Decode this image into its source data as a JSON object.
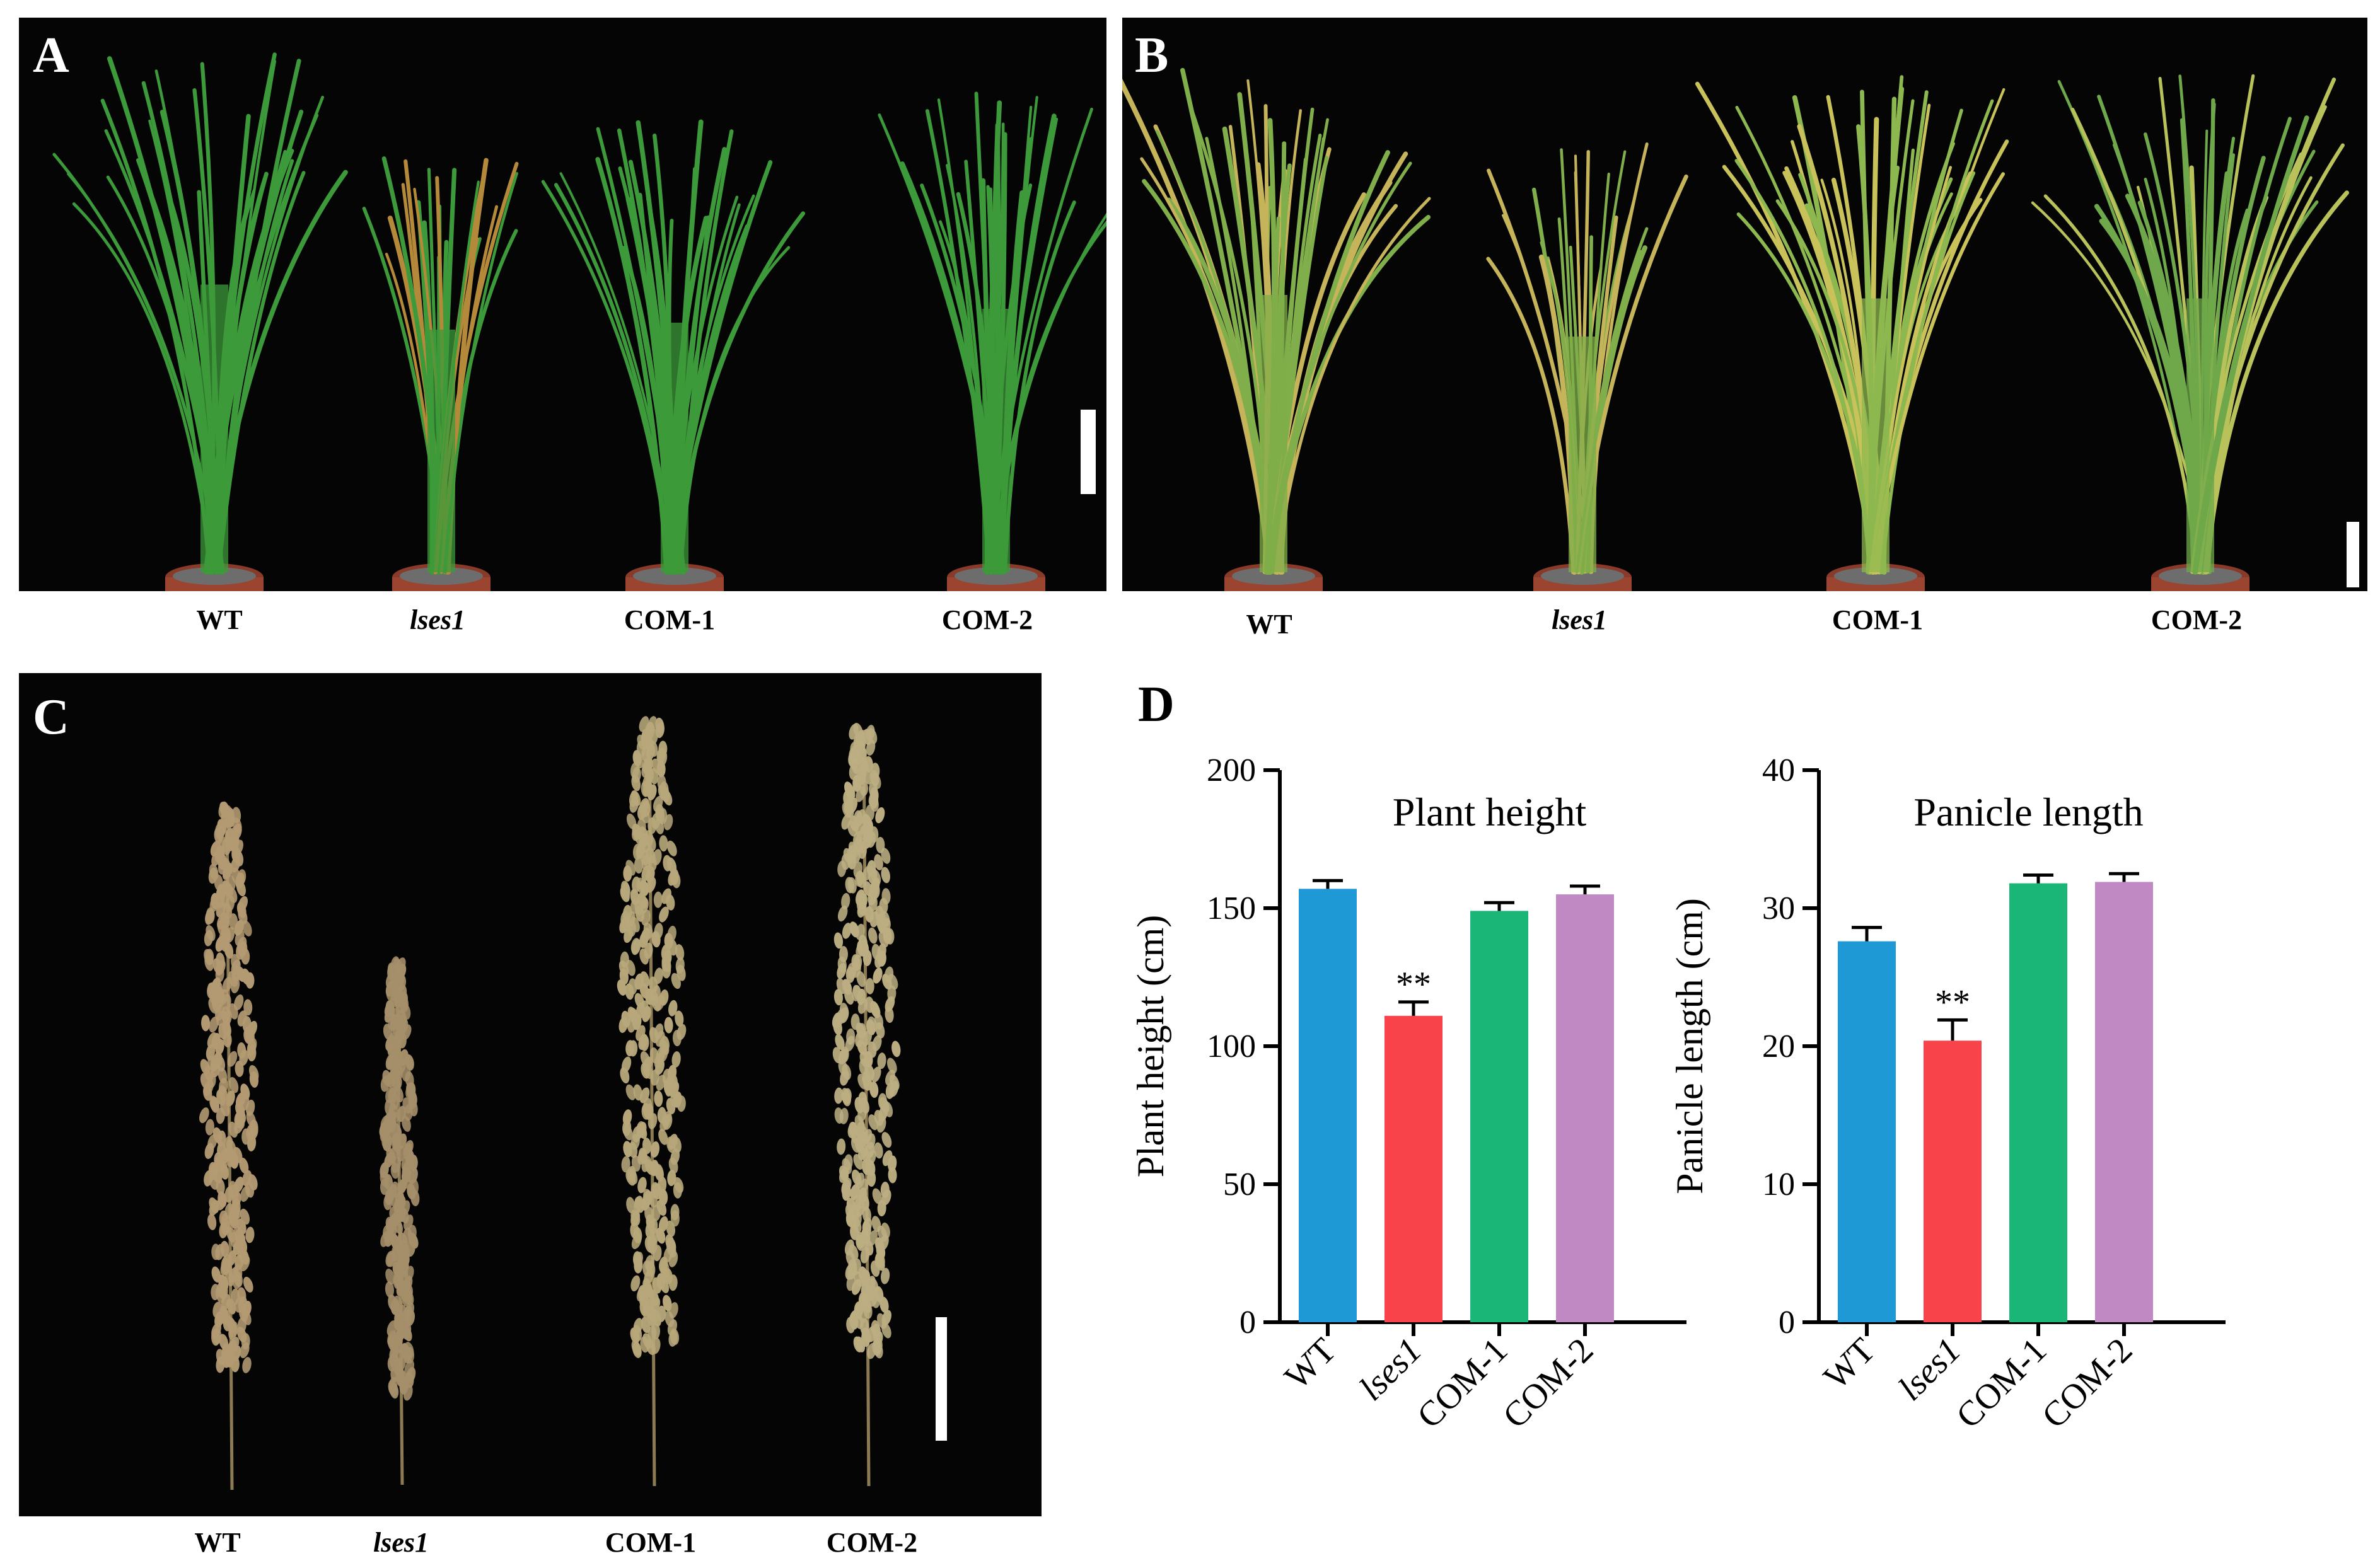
{
  "figure": {
    "panels": {
      "A": {
        "letter": "A",
        "labels": [
          "WT",
          "lses1",
          "COM-1",
          "COM-2"
        ]
      },
      "B": {
        "letter": "B",
        "labels": [
          "WT",
          "lses1",
          "COM-1",
          "COM-2"
        ]
      },
      "C": {
        "letter": "C",
        "labels": [
          "WT",
          "lses1",
          "COM-1",
          "COM-2"
        ]
      },
      "D": {
        "letter": "D"
      }
    }
  },
  "colors": {
    "WT": "#1f98d6",
    "lses1": "#f9434b",
    "COM-1": "#1ab677",
    "COM-2": "#c089c4",
    "plant_green": "#3c9a3a",
    "panicle_tan": "#b39a72"
  },
  "chart_data": [
    {
      "type": "bar",
      "title": "Plant height",
      "ylabel": "Plant height (cm)",
      "xlabel": "",
      "categories": [
        "WT",
        "lses1",
        "COM-1",
        "COM-2"
      ],
      "values": [
        157,
        111,
        149,
        155
      ],
      "errors": [
        3,
        5,
        3,
        3
      ],
      "significance": [
        "",
        "**",
        "",
        ""
      ],
      "ylim": [
        0,
        200
      ],
      "yticks": [
        "0",
        "50",
        "100",
        "150",
        "200"
      ],
      "grid": false
    },
    {
      "type": "bar",
      "title": "Panicle length",
      "ylabel": "Panicle length (cm)",
      "xlabel": "",
      "categories": [
        "WT",
        "lses1",
        "COM-1",
        "COM-2"
      ],
      "values": [
        27.6,
        20.4,
        31.8,
        31.9
      ],
      "errors": [
        1.0,
        1.5,
        0.6,
        0.6
      ],
      "significance": [
        "",
        "**",
        "",
        ""
      ],
      "ylim": [
        0,
        40
      ],
      "yticks": [
        "0",
        "10",
        "20",
        "30",
        "40"
      ],
      "grid": false
    }
  ]
}
